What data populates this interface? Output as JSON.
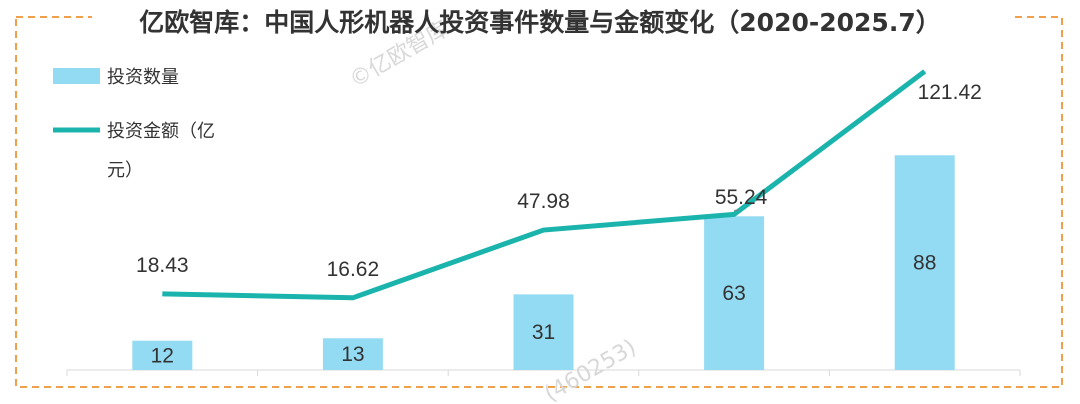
{
  "chart_data": {
    "type": "bar",
    "title": "亿欧智库：中国人形机器人投资事件数量与金额变化（2020-2025.7）",
    "categories": [
      "",
      "",
      "",
      "",
      ""
    ],
    "series": [
      {
        "name": "投资数量",
        "type": "bar",
        "values": [
          12,
          13,
          31,
          63,
          88
        ]
      },
      {
        "name": "投资金额（亿元）",
        "type": "line",
        "values": [
          18.43,
          16.62,
          47.98,
          55.24,
          121.42
        ]
      }
    ],
    "legend": {
      "position": "top-left",
      "bar_label": "投资数量",
      "line_label_1": "投资金额（亿",
      "line_label_2": "元）"
    },
    "colors": {
      "bar": "#93dbf3",
      "line": "#1bb4ad",
      "frame": "#f0a04b",
      "text": "#333333"
    },
    "grid": false
  },
  "watermarks": [
    "©亿欧智库",
    "(460253)"
  ]
}
